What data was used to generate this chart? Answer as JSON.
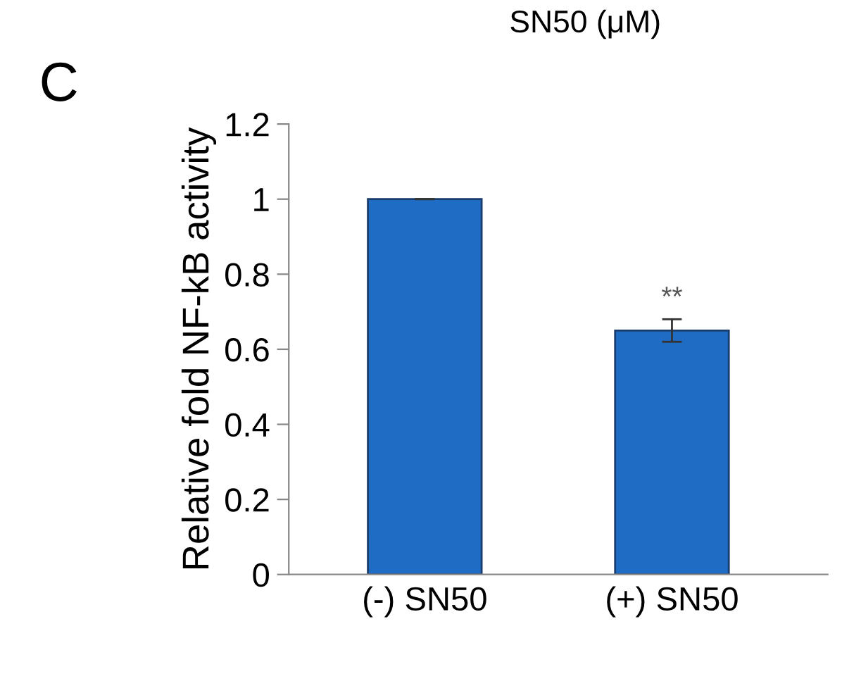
{
  "chart_data": {
    "type": "bar",
    "title": "SN50 (μM)",
    "ylabel": "Relative fold NF-kB activity",
    "categories": [
      "(-) SN50",
      "(+) SN50"
    ],
    "values": [
      1,
      0.65
    ],
    "errors": [
      null,
      0.03
    ],
    "color": "#1f6cc4",
    "ylim": [
      0,
      1.2
    ],
    "yticks": [
      0,
      0.2,
      0.4,
      0.6,
      0.8,
      1,
      1.2
    ],
    "grid": false,
    "legend": false,
    "annotations": [
      "C",
      "**"
    ]
  }
}
